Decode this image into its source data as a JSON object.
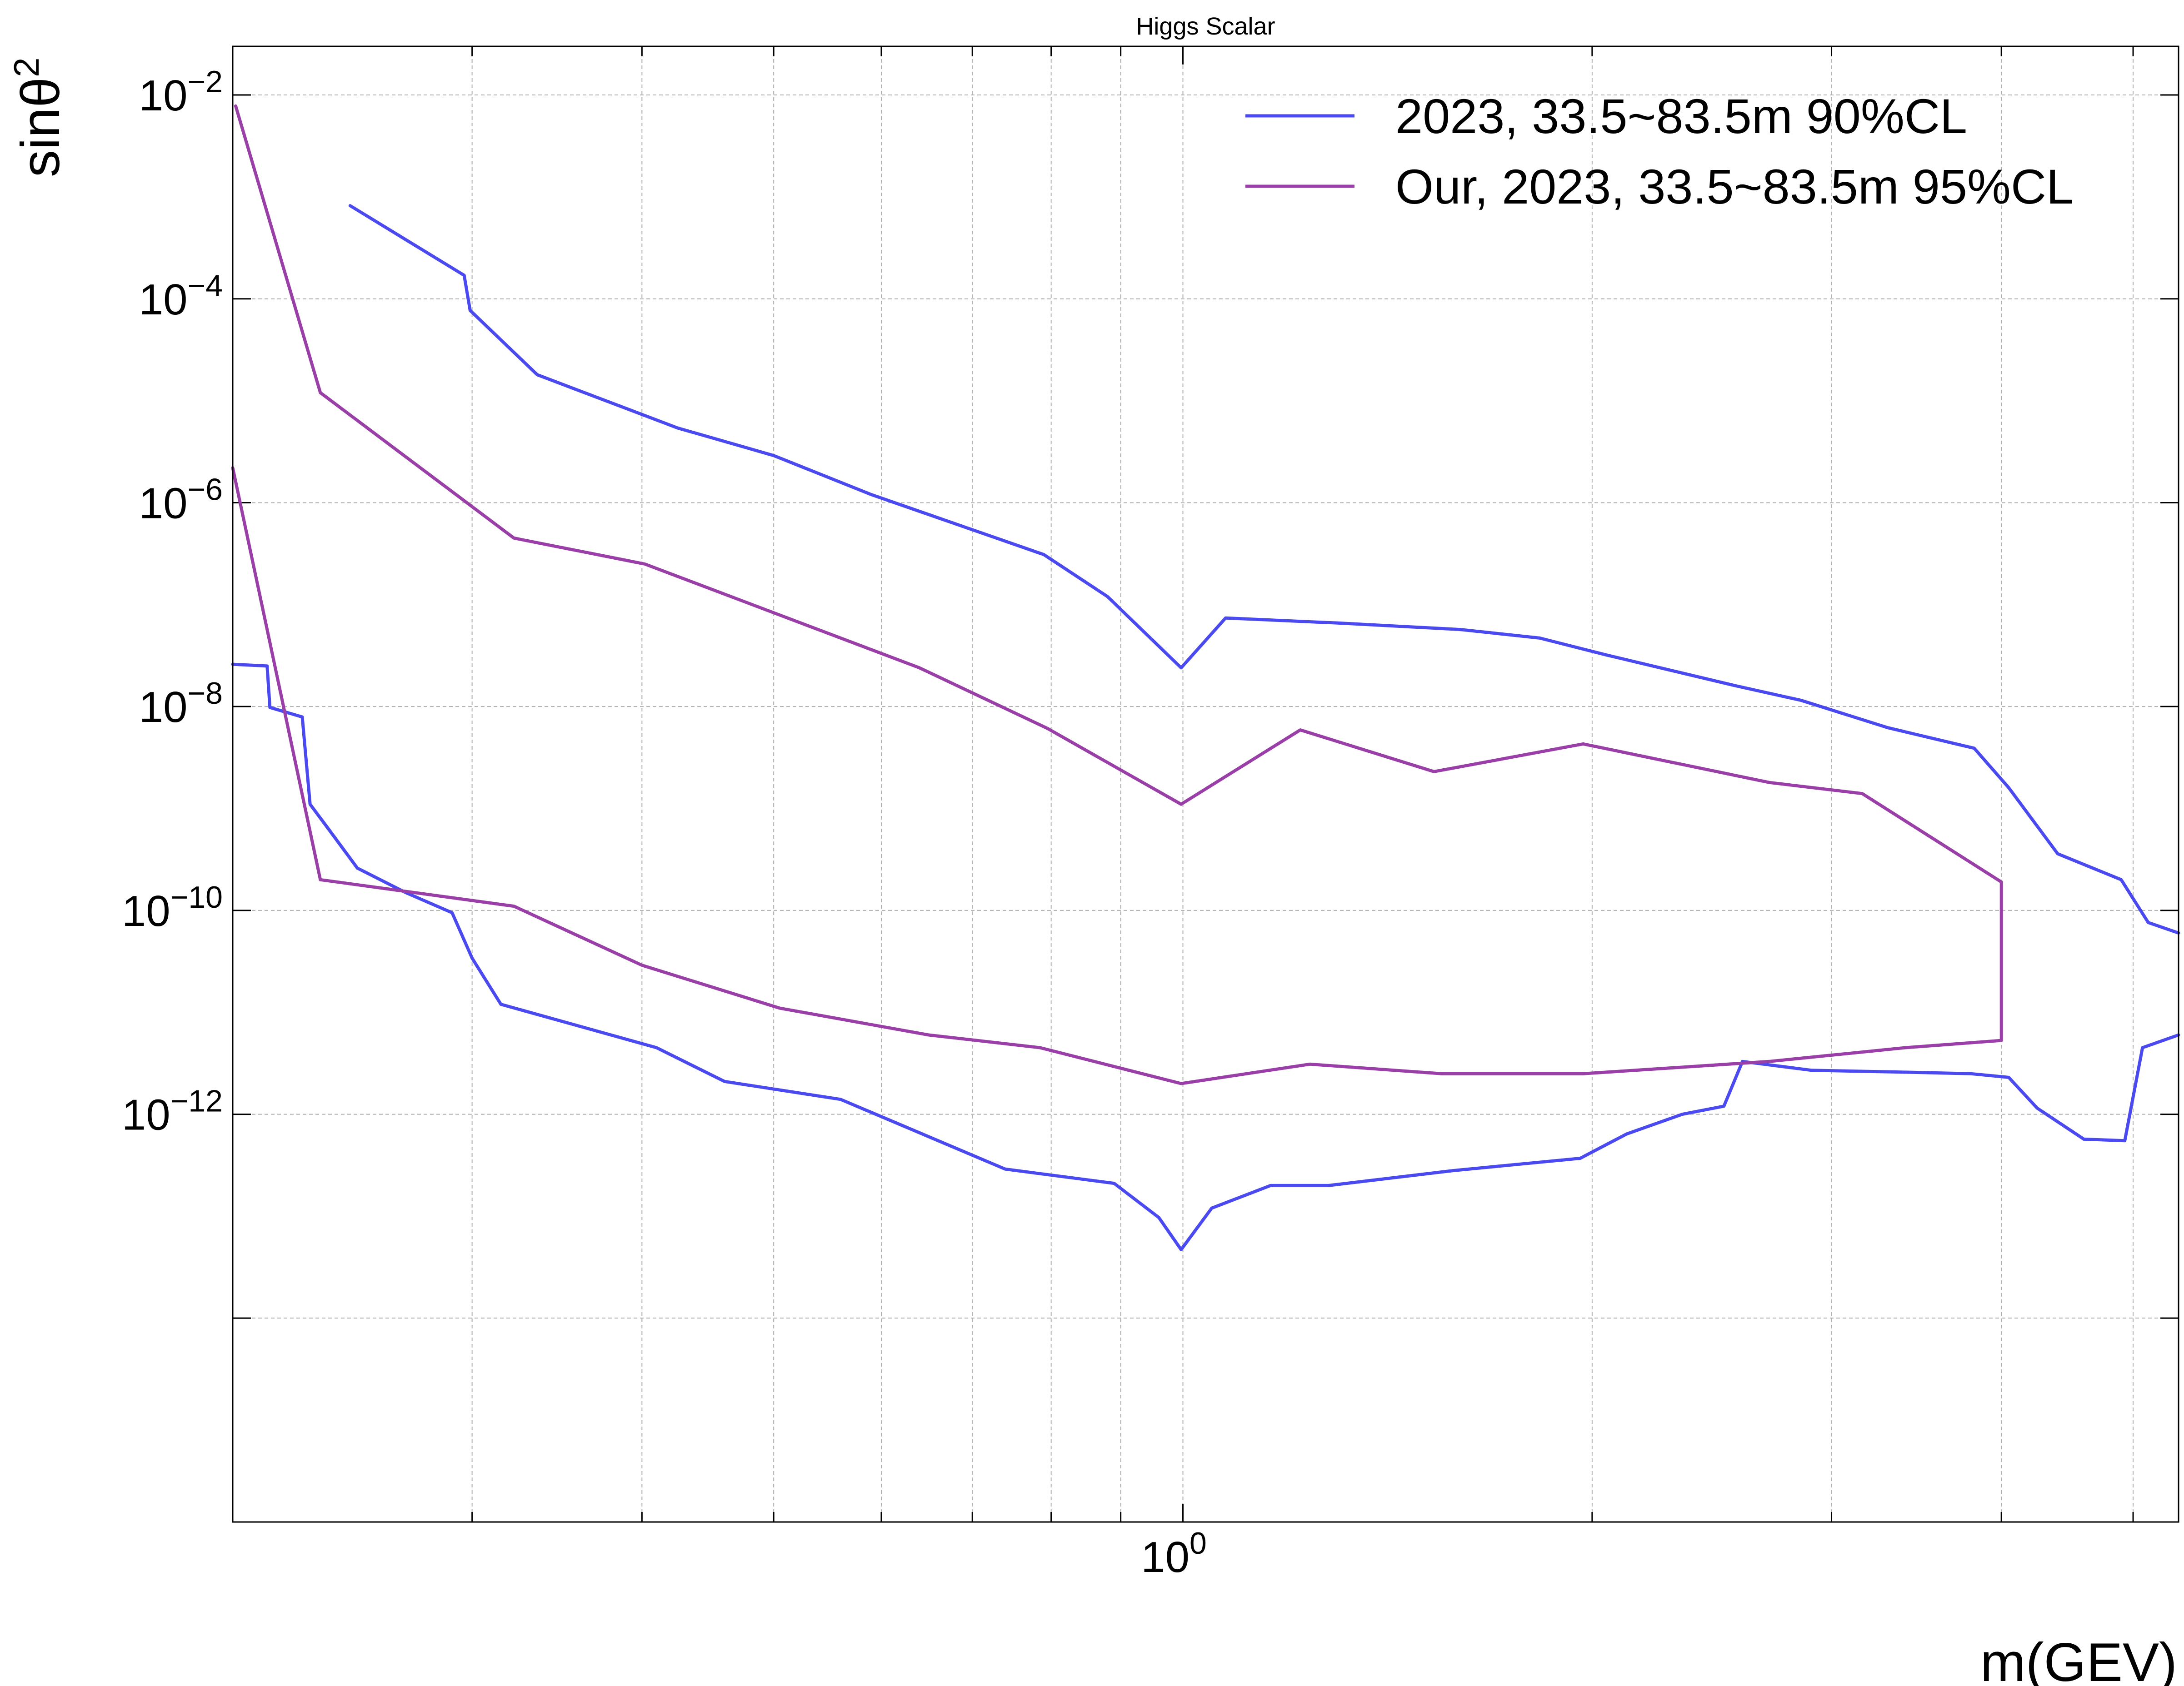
{
  "chart_data": {
    "type": "line",
    "title": "Higgs Scalar",
    "xlabel": "m(GEV)",
    "ylabel_base": "sinθ",
    "ylabel_sup": "2",
    "x_scale": "log",
    "y_scale": "log",
    "xlim": [
      0.2,
      5.4
    ],
    "ylim": [
      1e-16,
      0.03
    ],
    "grid": true,
    "legend_position": "top-right",
    "x_tick_labels": [
      {
        "value": 1,
        "base": "10",
        "exp": "0"
      }
    ],
    "y_tick_labels": [
      {
        "value": 1e-12,
        "base": "10",
        "exp": "−12"
      },
      {
        "value": 1e-10,
        "base": "10",
        "exp": "−10"
      },
      {
        "value": 1e-08,
        "base": "10",
        "exp": "−8"
      },
      {
        "value": 1e-06,
        "base": "10",
        "exp": "−6"
      },
      {
        "value": 0.0001,
        "base": "10",
        "exp": "−4"
      },
      {
        "value": 0.01,
        "base": "10",
        "exp": "−2"
      }
    ],
    "series": [
      {
        "name": "2023, 33.5~83.5m 90%CL",
        "color": "#4a4af0",
        "segments": [
          [
            [
              0.244,
              0.00082
            ],
            [
              0.296,
              0.00017
            ],
            [
              0.299,
              7.7e-05
            ],
            [
              0.335,
              1.8e-05
            ],
            [
              0.425,
              5.4e-06
            ],
            [
              0.5,
              2.9e-06
            ],
            [
              0.59,
              1.2e-06
            ],
            [
              0.79,
              3.1e-07
            ],
            [
              0.88,
              1.2e-07
            ],
            [
              0.997,
              2.4e-08
            ],
            [
              1.075,
              7.4e-08
            ],
            [
              1.3,
              6.6e-08
            ],
            [
              1.6,
              5.7e-08
            ],
            [
              1.83,
              4.7e-08
            ],
            [
              2.05,
              3.2e-08
            ],
            [
              2.55,
              1.6e-08
            ],
            [
              2.85,
              1.15e-08
            ],
            [
              3.3,
              6.2e-09
            ],
            [
              3.82,
              3.9e-09
            ],
            [
              4.05,
              1.6e-09
            ],
            [
              4.4,
              3.6e-10
            ],
            [
              4.9,
              2e-10
            ],
            [
              5.13,
              7.6e-11
            ],
            [
              5.4,
              6e-11
            ]
          ],
          [
            [
              5.4,
              6e-12
            ],
            [
              5.08,
              4.5e-12
            ],
            [
              4.93,
              5.5e-13
            ],
            [
              4.6,
              5.7e-13
            ],
            [
              4.25,
              1.15e-12
            ],
            [
              4.05,
              2.3e-12
            ],
            [
              3.8,
              2.5e-12
            ],
            [
              3.35,
              2.6e-12
            ],
            [
              2.9,
              2.7e-12
            ],
            [
              2.58,
              3.3e-12
            ],
            [
              2.5,
              1.2e-12
            ],
            [
              2.33,
              1e-12
            ],
            [
              2.12,
              6.4e-13
            ],
            [
              1.96,
              3.7e-13
            ],
            [
              1.58,
              2.8e-13
            ],
            [
              1.28,
              2e-13
            ],
            [
              1.16,
              2e-13
            ],
            [
              1.05,
              1.2e-13
            ],
            [
              0.997,
              4.7e-14
            ],
            [
              0.96,
              9.7e-14
            ],
            [
              0.89,
              2.1e-13
            ],
            [
              0.74,
              2.9e-13
            ],
            [
              0.56,
              1.4e-12
            ],
            [
              0.46,
              2.1e-12
            ],
            [
              0.41,
              4.5e-12
            ],
            [
              0.315,
              1.2e-11
            ],
            [
              0.3,
              3.4e-11
            ],
            [
              0.29,
              9.5e-11
            ],
            [
              0.268,
              1.5e-10
            ],
            [
              0.247,
              2.6e-10
            ],
            [
              0.235,
              6.4e-10
            ],
            [
              0.228,
              1.1e-09
            ],
            [
              0.225,
              7.9e-09
            ],
            [
              0.213,
              9.8e-09
            ],
            [
              0.212,
              2.5e-08
            ],
            [
              0.2,
              2.6e-08
            ]
          ]
        ]
      },
      {
        "name": "Our, 2023, 33.5~83.5m 95%CL",
        "color": "#9a3fa8",
        "segments": [
          [
            [
              0.201,
              0.0078
            ],
            [
              0.232,
              1.2e-05
            ],
            [
              0.322,
              4.5e-07
            ],
            [
              0.402,
              2.5e-07
            ],
            [
              0.64,
              2.4e-08
            ],
            [
              0.795,
              6.1e-09
            ],
            [
              0.997,
              1.1e-09
            ],
            [
              1.22,
              5.9e-09
            ],
            [
              1.53,
              2.3e-09
            ],
            [
              1.97,
              4.3e-09
            ],
            [
              2.7,
              1.8e-09
            ],
            [
              3.16,
              1.4e-09
            ],
            [
              4.0,
              1.9e-10
            ],
            [
              4.0,
              5.3e-12
            ],
            [
              3.4,
              4.5e-12
            ],
            [
              2.7,
              3.3e-12
            ],
            [
              1.97,
              2.5e-12
            ],
            [
              1.55,
              2.5e-12
            ],
            [
              1.24,
              3.1e-12
            ],
            [
              0.997,
              2e-12
            ],
            [
              0.785,
              4.5e-12
            ],
            [
              0.65,
              6e-12
            ],
            [
              0.505,
              1.1e-11
            ],
            [
              0.4,
              2.9e-11
            ],
            [
              0.322,
              1.1e-10
            ],
            [
              0.232,
              2e-10
            ],
            [
              0.2,
              2.2e-06
            ]
          ]
        ]
      }
    ]
  }
}
